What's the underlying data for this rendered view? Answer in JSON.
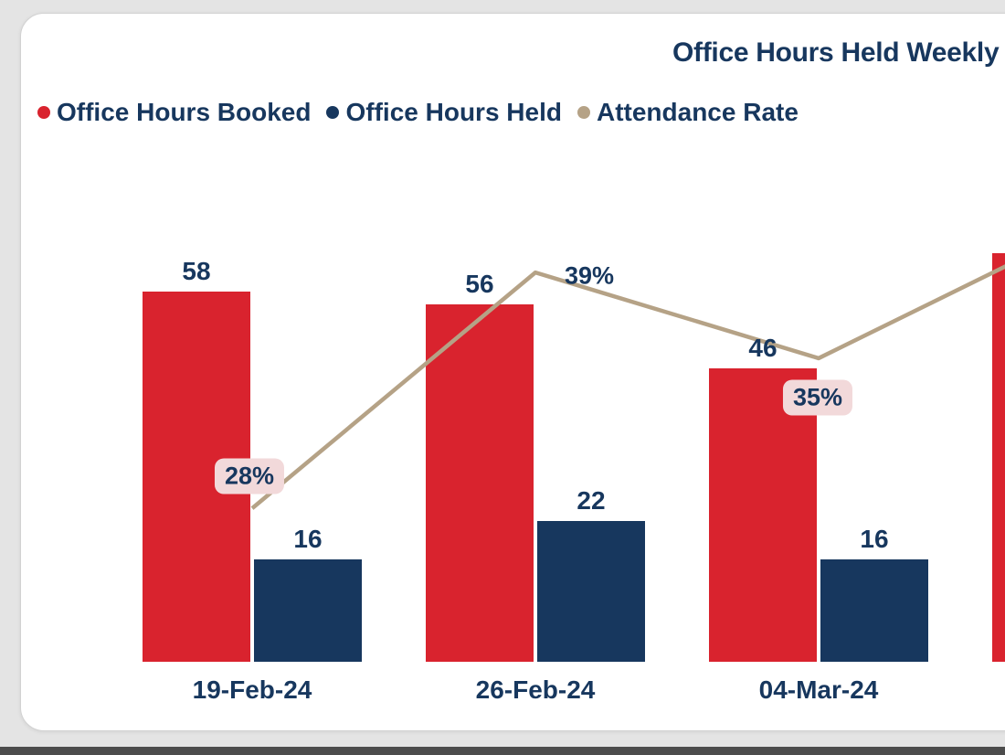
{
  "page": {
    "background_color": "#e4e4e4",
    "bottom_strip_color": "#4c4c4c"
  },
  "card": {
    "background_color": "#ffffff"
  },
  "chart_data": {
    "type": "combo",
    "title": "Office Hours Held Weekly",
    "categories": [
      "19-Feb-24",
      "26-Feb-24",
      "04-Mar-24"
    ],
    "series": [
      {
        "name": "Office Hours Booked",
        "chart_type": "bar",
        "color": "#d9232e",
        "values": [
          58,
          56,
          46
        ]
      },
      {
        "name": "Office Hours Held",
        "chart_type": "bar",
        "color": "#17375e",
        "values": [
          16,
          22,
          16
        ]
      },
      {
        "name": "Attendance Rate",
        "chart_type": "line",
        "color": "#b5a286",
        "unit": "%",
        "values": [
          28,
          39,
          35
        ]
      }
    ],
    "clipped_next_group": {
      "booked_estimate": 64,
      "attendance_rate_estimate": 41.5
    },
    "value_axis": "hidden",
    "gridlines": false,
    "legend_position": "top-left",
    "rate_label_style": {
      "chip_background": "#f2d9da",
      "text_color": "#17375e"
    }
  }
}
